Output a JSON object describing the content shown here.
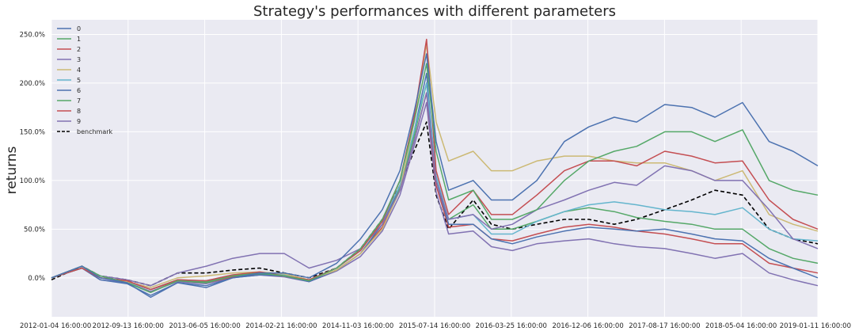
{
  "chart_data": {
    "type": "line",
    "title": "Strategy's performances with different parameters",
    "xlabel": "",
    "ylabel": "returns",
    "y_unit": "percent",
    "ylim": [
      -40,
      265
    ],
    "yticks": [
      0,
      50,
      100,
      150,
      200,
      250
    ],
    "ytick_labels": [
      "0.0%",
      "50.0%",
      "100.0%",
      "150.0%",
      "200.0%",
      "250.0%"
    ],
    "xlim": [
      "2012-01-04",
      "2019-01-11"
    ],
    "xtick_labels": [
      "2012-01-04 16:00:00",
      "2012-09-13 16:00:00",
      "2013-06-05 16:00:00",
      "2014-02-21 16:00:00",
      "2014-11-03 16:00:00",
      "2015-07-14 16:00:00",
      "2016-03-25 16:00:00",
      "2016-12-06 16:00:00",
      "2017-08-17 16:00:00",
      "2018-05-04 16:00:00",
      "2019-01-11 16:00:00"
    ],
    "grid": true,
    "legend_position": "top-left",
    "x": [
      "2012-01-04",
      "2012-04-15",
      "2012-06-15",
      "2012-09-13",
      "2012-12-01",
      "2013-03-01",
      "2013-06-05",
      "2013-09-01",
      "2013-12-01",
      "2014-02-21",
      "2014-05-15",
      "2014-08-15",
      "2014-11-03",
      "2015-01-15",
      "2015-03-15",
      "2015-05-01",
      "2015-06-12",
      "2015-07-14",
      "2015-08-25",
      "2015-11-15",
      "2016-01-15",
      "2016-03-25",
      "2016-06-15",
      "2016-09-15",
      "2016-12-06",
      "2017-03-01",
      "2017-05-15",
      "2017-08-17",
      "2017-11-15",
      "2018-02-01",
      "2018-05-04",
      "2018-08-01",
      "2018-10-20",
      "2019-01-11"
    ],
    "series": [
      {
        "name": "0",
        "color": "#4C72B0",
        "values": [
          0,
          12,
          0,
          -5,
          -20,
          -5,
          -10,
          0,
          5,
          5,
          0,
          15,
          40,
          70,
          110,
          170,
          230,
          140,
          90,
          100,
          80,
          80,
          100,
          140,
          155,
          165,
          160,
          178,
          175,
          165,
          180,
          140,
          130,
          115
        ]
      },
      {
        "name": "1",
        "color": "#55A868",
        "values": [
          0,
          12,
          2,
          -5,
          -15,
          -3,
          -5,
          2,
          5,
          2,
          -3,
          10,
          30,
          60,
          100,
          160,
          220,
          130,
          80,
          90,
          60,
          60,
          70,
          100,
          120,
          130,
          135,
          150,
          150,
          140,
          152,
          100,
          90,
          85
        ]
      },
      {
        "name": "2",
        "color": "#C44E52",
        "values": [
          0,
          10,
          0,
          -3,
          -12,
          -2,
          -3,
          3,
          6,
          2,
          -2,
          10,
          28,
          58,
          100,
          165,
          245,
          110,
          65,
          90,
          65,
          65,
          85,
          110,
          120,
          120,
          115,
          130,
          125,
          118,
          120,
          80,
          60,
          50
        ]
      },
      {
        "name": "3",
        "color": "#8172B2",
        "values": [
          0,
          12,
          2,
          -2,
          -8,
          5,
          12,
          20,
          25,
          25,
          10,
          18,
          30,
          55,
          90,
          140,
          190,
          100,
          60,
          65,
          50,
          55,
          70,
          80,
          90,
          98,
          95,
          115,
          110,
          100,
          100,
          70,
          40,
          30
        ]
      },
      {
        "name": "4",
        "color": "#CCB974",
        "values": [
          0,
          12,
          0,
          -4,
          -10,
          0,
          2,
          5,
          6,
          4,
          -2,
          8,
          25,
          50,
          90,
          160,
          240,
          160,
          120,
          130,
          110,
          110,
          120,
          125,
          125,
          120,
          118,
          118,
          110,
          100,
          110,
          65,
          55,
          48
        ]
      },
      {
        "name": "5",
        "color": "#64B5CD",
        "values": [
          0,
          12,
          0,
          -4,
          -12,
          -2,
          -3,
          3,
          5,
          3,
          -2,
          10,
          28,
          58,
          95,
          150,
          200,
          105,
          60,
          65,
          45,
          45,
          58,
          68,
          75,
          78,
          75,
          70,
          68,
          65,
          72,
          50,
          40,
          38
        ]
      },
      {
        "name": "6",
        "color": "#4C72B0",
        "values": [
          0,
          10,
          -2,
          -6,
          -18,
          -5,
          -8,
          0,
          3,
          2,
          -4,
          8,
          25,
          55,
          95,
          150,
          210,
          100,
          55,
          55,
          40,
          35,
          42,
          48,
          52,
          50,
          48,
          50,
          45,
          40,
          38,
          20,
          10,
          0
        ]
      },
      {
        "name": "7",
        "color": "#55A868",
        "values": [
          0,
          10,
          0,
          -4,
          -12,
          -2,
          -4,
          2,
          4,
          2,
          -3,
          8,
          25,
          55,
          92,
          145,
          200,
          100,
          60,
          75,
          50,
          50,
          58,
          68,
          72,
          68,
          62,
          58,
          55,
          50,
          50,
          30,
          20,
          15
        ]
      },
      {
        "name": "8",
        "color": "#C44E52",
        "values": [
          0,
          10,
          0,
          -4,
          -12,
          -3,
          -5,
          1,
          4,
          2,
          -3,
          8,
          25,
          52,
          90,
          140,
          190,
          95,
          52,
          55,
          40,
          38,
          45,
          52,
          55,
          52,
          48,
          45,
          40,
          35,
          35,
          15,
          10,
          5
        ]
      },
      {
        "name": "9",
        "color": "#8172B2",
        "values": [
          0,
          10,
          -2,
          -5,
          -14,
          -4,
          -6,
          0,
          3,
          1,
          -4,
          7,
          22,
          48,
          85,
          135,
          180,
          88,
          45,
          48,
          32,
          28,
          35,
          38,
          40,
          35,
          32,
          30,
          25,
          20,
          25,
          5,
          -2,
          -8
        ]
      },
      {
        "name": "benchmark",
        "color": "#000000",
        "dashed": true,
        "values": [
          -2,
          12,
          2,
          -2,
          -8,
          5,
          5,
          8,
          10,
          5,
          0,
          10,
          30,
          60,
          95,
          130,
          160,
          85,
          50,
          80,
          55,
          50,
          55,
          60,
          60,
          55,
          60,
          70,
          80,
          90,
          85,
          50,
          40,
          35
        ]
      }
    ]
  }
}
